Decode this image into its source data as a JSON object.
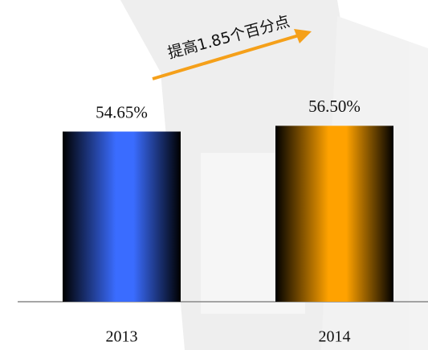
{
  "chart_data": {
    "type": "bar",
    "annotation": "提高1.85个百分点",
    "categories": [
      "2013",
      "2014"
    ],
    "values": [
      54.65,
      56.5
    ],
    "value_labels": [
      "54.65%",
      "56.50%"
    ],
    "colors": [
      "#3a6cff",
      "#ffa200"
    ]
  }
}
